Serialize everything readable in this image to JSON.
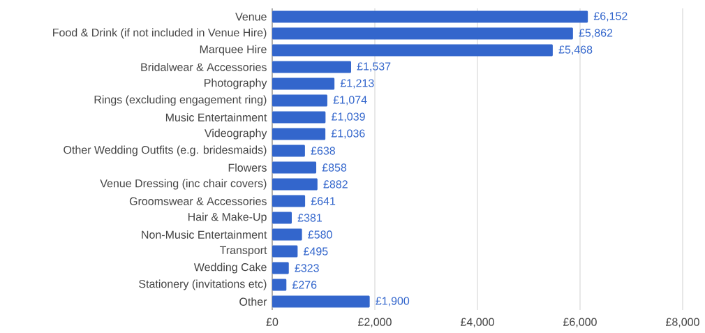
{
  "chart_data": {
    "type": "bar",
    "orientation": "horizontal",
    "categories": [
      "Venue",
      "Food & Drink (if not included in Venue Hire)",
      "Marquee Hire",
      "Bridalwear & Accessories",
      "Photography",
      "Rings (excluding engagement ring)",
      "Music Entertainment",
      "Videography",
      "Other Wedding Outfits (e.g. bridesmaids)",
      "Flowers",
      "Venue Dressing (inc chair covers)",
      "Groomswear & Accessories",
      "Hair & Make-Up",
      "Non-Music Entertainment",
      "Transport",
      "Wedding Cake",
      "Stationery (invitations etc)",
      "Other"
    ],
    "values": [
      6152,
      5862,
      5468,
      1537,
      1213,
      1074,
      1039,
      1036,
      638,
      858,
      882,
      641,
      381,
      580,
      495,
      323,
      276,
      1900
    ],
    "value_labels": [
      "£6,152",
      "£5,862",
      "£5,468",
      "£1,537",
      "£1,213",
      "£1,074",
      "£1,039",
      "£1,036",
      "£638",
      "£858",
      "£882",
      "£641",
      "£381",
      "£580",
      "£495",
      "£323",
      "£276",
      "£1,900"
    ],
    "color": "#3366cc",
    "xlim": [
      0,
      8000
    ],
    "xticks": [
      {
        "value": 0,
        "label": "£0"
      },
      {
        "value": 2000,
        "label": "£2,000"
      },
      {
        "value": 4000,
        "label": "£4,000"
      },
      {
        "value": 6000,
        "label": "£6,000"
      },
      {
        "value": 8000,
        "label": "£8,000"
      }
    ],
    "grid": "x"
  }
}
